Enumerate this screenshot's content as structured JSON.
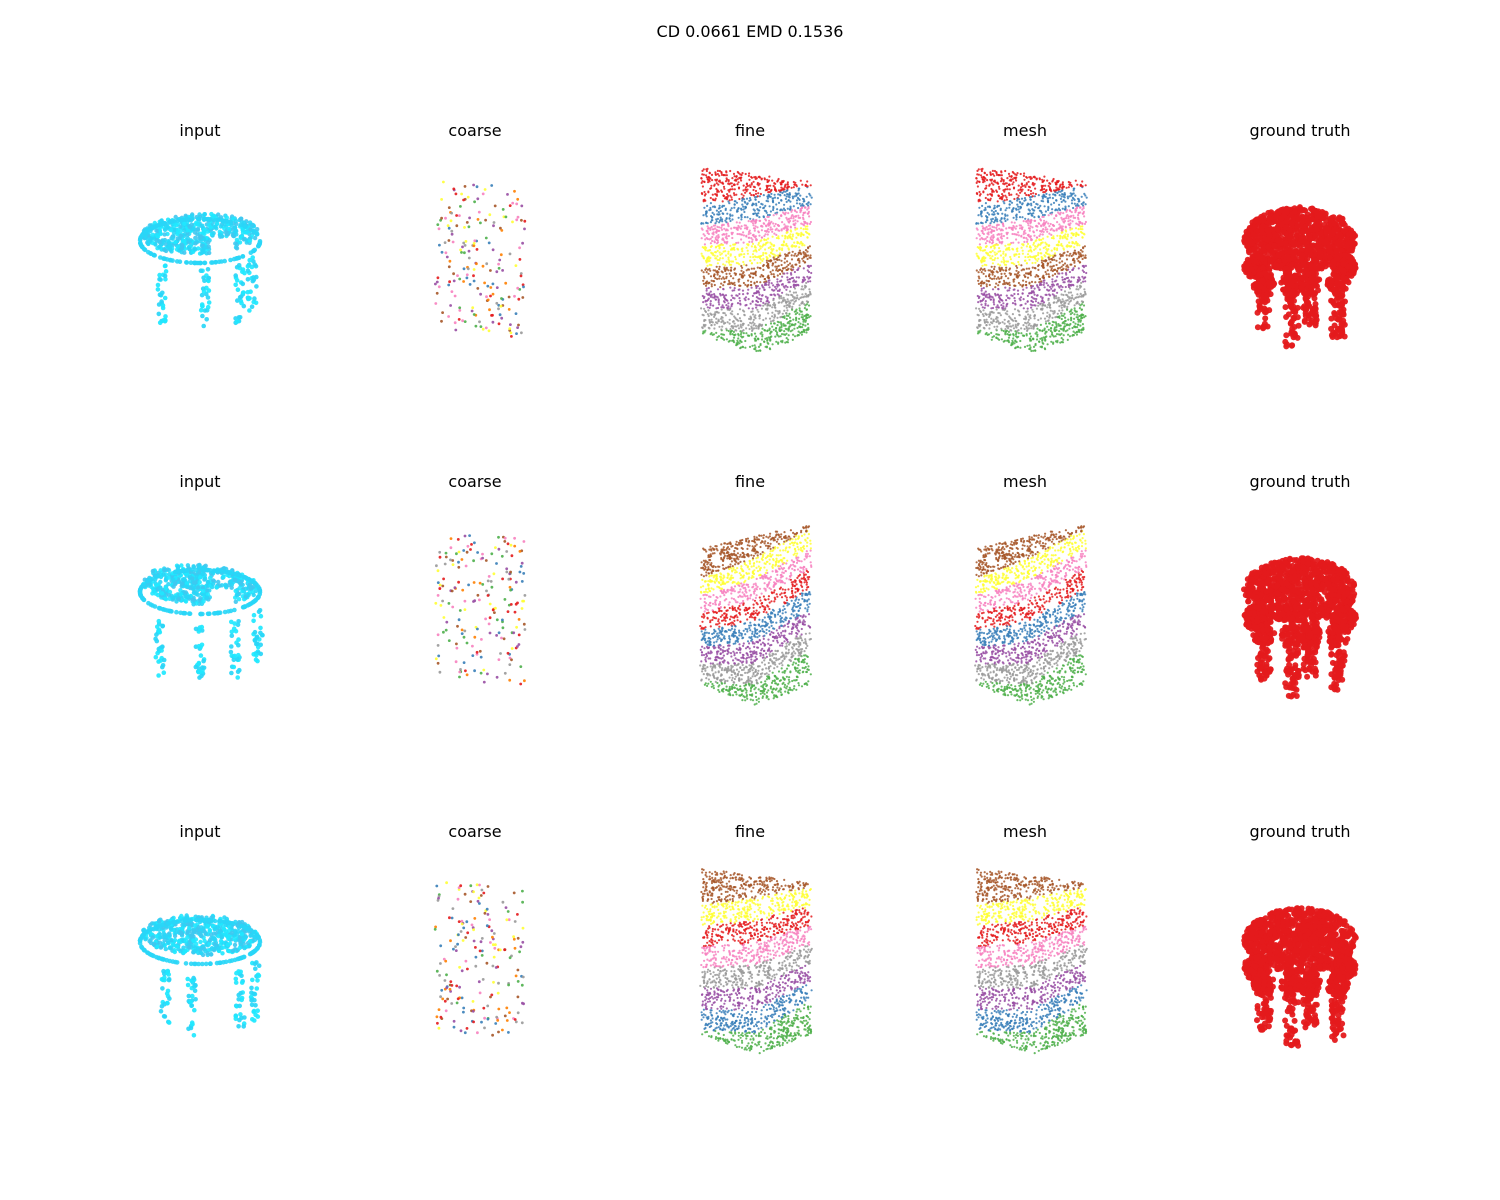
{
  "figure": {
    "title": "CD 0.0661  EMD 0.1536"
  },
  "columns": [
    "input",
    "coarse",
    "fine",
    "mesh",
    "ground truth"
  ],
  "rows": [
    {
      "panels": [
        {
          "label": "input",
          "kind": "input"
        },
        {
          "label": "coarse",
          "kind": "coarse"
        },
        {
          "label": "fine",
          "kind": "fine"
        },
        {
          "label": "mesh",
          "kind": "mesh"
        },
        {
          "label": "ground truth",
          "kind": "gt"
        }
      ]
    },
    {
      "panels": [
        {
          "label": "input",
          "kind": "input"
        },
        {
          "label": "coarse",
          "kind": "coarse"
        },
        {
          "label": "fine",
          "kind": "fine"
        },
        {
          "label": "mesh",
          "kind": "mesh"
        },
        {
          "label": "ground truth",
          "kind": "gt"
        }
      ]
    },
    {
      "panels": [
        {
          "label": "input",
          "kind": "input"
        },
        {
          "label": "coarse",
          "kind": "coarse"
        },
        {
          "label": "fine",
          "kind": "fine"
        },
        {
          "label": "mesh",
          "kind": "mesh"
        },
        {
          "label": "ground truth",
          "kind": "gt"
        }
      ]
    }
  ],
  "colors": {
    "input": [
      "#29d6f7",
      "#1fe8ff",
      "#3fc8f0"
    ],
    "ground_truth": "#e41a1c",
    "palette": [
      "#e41a1c",
      "#377eb8",
      "#4daf4a",
      "#984ea3",
      "#ff7f00",
      "#ffff33",
      "#a65628",
      "#f781bf",
      "#999999"
    ]
  }
}
